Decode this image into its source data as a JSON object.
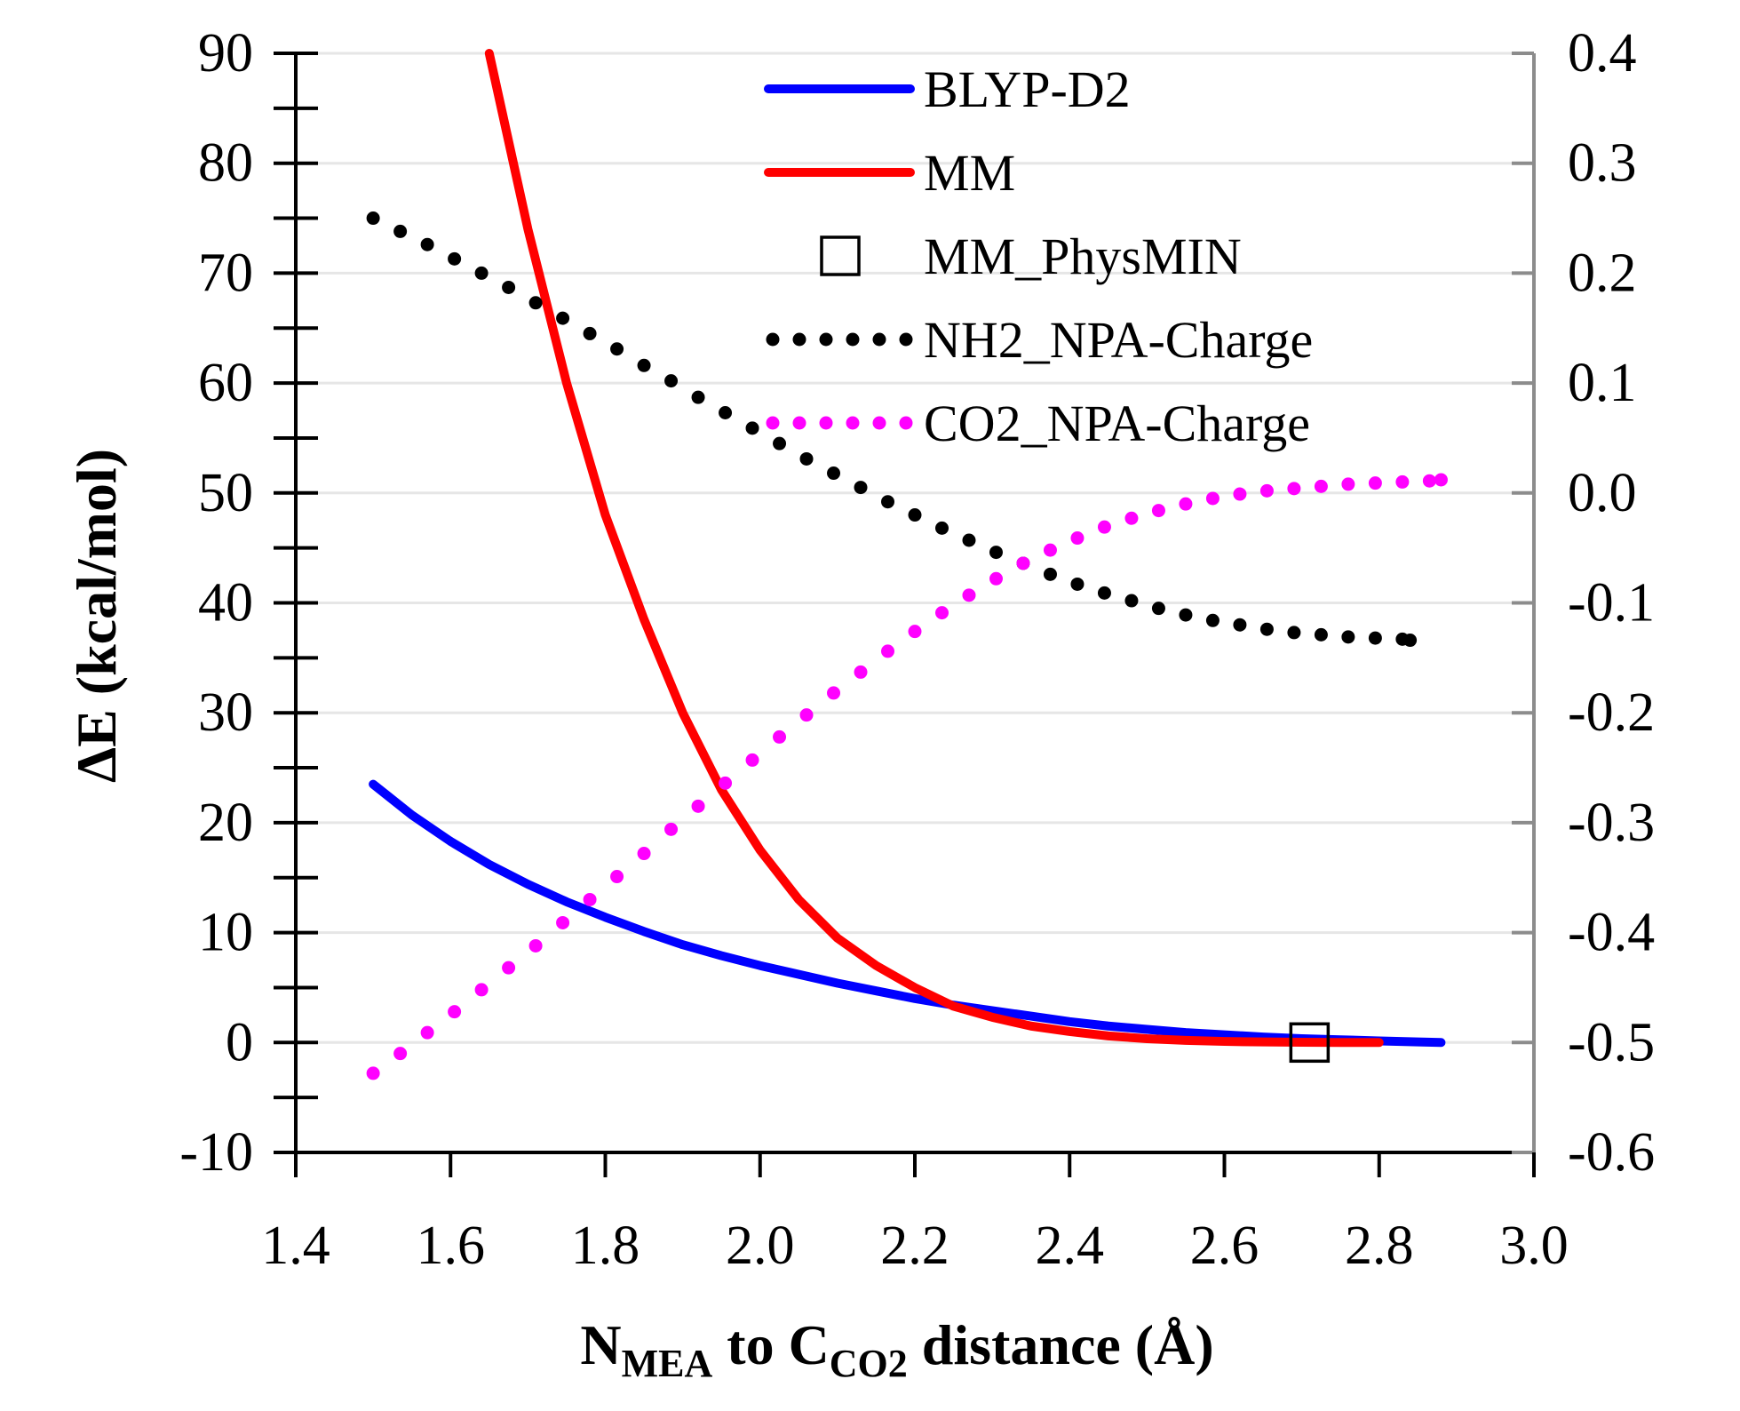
{
  "chart_data": {
    "type": "line",
    "title": "",
    "xlabel": {
      "main": "N",
      "sub1": "MEA",
      "mid": " to C",
      "sub2": "CO2",
      "end": " distance (Å)"
    },
    "ylabel": "ΔE (kcal/mol)",
    "y2label": "",
    "xlim": [
      1.4,
      3.0
    ],
    "ylim": [
      -10,
      90
    ],
    "y2lim": [
      -0.6,
      0.4
    ],
    "grid": true,
    "legend_position": "top-right",
    "x_ticks": [
      "1.4",
      "1.6",
      "1.8",
      "2.0",
      "2.2",
      "2.4",
      "2.6",
      "2.8",
      "3.0"
    ],
    "y_ticks": [
      "-10",
      "0",
      "10",
      "20",
      "30",
      "40",
      "50",
      "60",
      "70",
      "80",
      "90"
    ],
    "y2_ticks": [
      "-0.6",
      "-0.5",
      "-0.4",
      "-0.3",
      "-0.2",
      "-0.1",
      "0.0",
      "0.1",
      "0.2",
      "0.3",
      "0.4"
    ],
    "series": [
      {
        "name": "BLYP-D2",
        "axis": "left",
        "style": "solid",
        "color": "#0000ff",
        "x": [
          1.5,
          1.55,
          1.6,
          1.65,
          1.7,
          1.75,
          1.8,
          1.85,
          1.9,
          1.95,
          2.0,
          2.05,
          2.1,
          2.15,
          2.2,
          2.25,
          2.3,
          2.35,
          2.4,
          2.45,
          2.5,
          2.55,
          2.6,
          2.65,
          2.7,
          2.75,
          2.8,
          2.85,
          2.88
        ],
        "y": [
          23.5,
          20.7,
          18.3,
          16.2,
          14.4,
          12.8,
          11.4,
          10.1,
          8.9,
          7.9,
          7.0,
          6.2,
          5.4,
          4.7,
          4.0,
          3.4,
          2.9,
          2.4,
          1.9,
          1.5,
          1.2,
          0.9,
          0.7,
          0.5,
          0.35,
          0.25,
          0.15,
          0.05,
          0.0
        ]
      },
      {
        "name": "MM",
        "axis": "left",
        "style": "solid",
        "color": "#ff0000",
        "x": [
          1.65,
          1.7,
          1.75,
          1.8,
          1.85,
          1.9,
          1.95,
          2.0,
          2.05,
          2.1,
          2.15,
          2.2,
          2.25,
          2.3,
          2.35,
          2.4,
          2.45,
          2.5,
          2.55,
          2.6,
          2.65,
          2.7,
          2.75,
          2.8
        ],
        "y": [
          90.0,
          74.0,
          60.0,
          48.0,
          38.5,
          30.0,
          23.0,
          17.5,
          13.0,
          9.5,
          7.0,
          5.0,
          3.3,
          2.3,
          1.5,
          1.0,
          0.6,
          0.35,
          0.2,
          0.1,
          0.05,
          0.02,
          0.0,
          0.0
        ]
      },
      {
        "name": "MM_PhysMIN",
        "axis": "left",
        "style": "marker-square",
        "color": "#000000",
        "x": [
          2.71
        ],
        "y": [
          0.0
        ]
      },
      {
        "name": "NH2_NPA-Charge",
        "axis": "right",
        "style": "dotted",
        "color": "#000000",
        "x": [
          1.5,
          1.535,
          1.57,
          1.605,
          1.64,
          1.675,
          1.71,
          1.745,
          1.78,
          1.815,
          1.85,
          1.885,
          1.92,
          1.955,
          1.99,
          2.025,
          2.06,
          2.095,
          2.13,
          2.165,
          2.2,
          2.235,
          2.27,
          2.305,
          2.34,
          2.375,
          2.41,
          2.445,
          2.48,
          2.515,
          2.55,
          2.585,
          2.62,
          2.655,
          2.69,
          2.725,
          2.76,
          2.795,
          2.83,
          2.84
        ],
        "y": [
          0.25,
          0.238,
          0.226,
          0.213,
          0.2,
          0.187,
          0.173,
          0.159,
          0.145,
          0.131,
          0.116,
          0.102,
          0.087,
          0.073,
          0.059,
          0.045,
          0.031,
          0.018,
          0.005,
          -0.008,
          -0.02,
          -0.032,
          -0.043,
          -0.054,
          -0.064,
          -0.074,
          -0.083,
          -0.091,
          -0.098,
          -0.105,
          -0.111,
          -0.116,
          -0.12,
          -0.124,
          -0.127,
          -0.129,
          -0.131,
          -0.132,
          -0.133,
          -0.134
        ]
      },
      {
        "name": "CO2_NPA-Charge",
        "axis": "right",
        "style": "dotted",
        "color": "#ff00ff",
        "x": [
          1.5,
          1.535,
          1.57,
          1.605,
          1.64,
          1.675,
          1.71,
          1.745,
          1.78,
          1.815,
          1.85,
          1.885,
          1.92,
          1.955,
          1.99,
          2.025,
          2.06,
          2.095,
          2.13,
          2.165,
          2.2,
          2.235,
          2.27,
          2.305,
          2.34,
          2.375,
          2.41,
          2.445,
          2.48,
          2.515,
          2.55,
          2.585,
          2.62,
          2.655,
          2.69,
          2.725,
          2.76,
          2.795,
          2.83,
          2.865,
          2.88
        ],
        "y": [
          -0.528,
          -0.51,
          -0.491,
          -0.472,
          -0.452,
          -0.432,
          -0.412,
          -0.391,
          -0.37,
          -0.349,
          -0.328,
          -0.306,
          -0.285,
          -0.264,
          -0.243,
          -0.222,
          -0.202,
          -0.182,
          -0.163,
          -0.144,
          -0.126,
          -0.109,
          -0.093,
          -0.078,
          -0.064,
          -0.052,
          -0.041,
          -0.031,
          -0.023,
          -0.016,
          -0.01,
          -0.005,
          -0.001,
          0.002,
          0.004,
          0.006,
          0.008,
          0.009,
          0.01,
          0.011,
          0.012
        ]
      }
    ]
  }
}
